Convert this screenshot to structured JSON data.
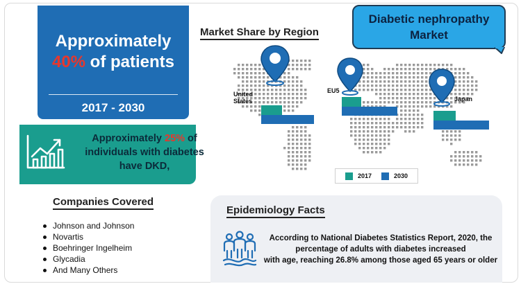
{
  "stat_card": {
    "line1": "Approximately",
    "percent": "40%",
    "line2_rest": " of patients",
    "years": "2017 - 2030"
  },
  "dkd_card": {
    "prefix": "Approximately ",
    "percent": "25%",
    "suffix": " of individuals with diabetes have DKD,",
    "icon": "growth-chart-icon"
  },
  "companies": {
    "title": "Companies Covered",
    "items": [
      "Johnson and Johnson",
      "Novartis",
      "Boehringer Ingelheim",
      "Glycadia",
      "And Many Others"
    ]
  },
  "market_share": {
    "title": "Market Share by Region",
    "regions": [
      {
        "name": "United States",
        "label_line1": "United",
        "label_line2": "States"
      },
      {
        "name": "EU5",
        "label_line1": "EU5",
        "label_line2": ""
      },
      {
        "name": "Japan",
        "label_line1": "Japan",
        "label_line2": ""
      }
    ],
    "legend": [
      {
        "label": "2017",
        "color": "#1a9d8e"
      },
      {
        "label": "2030",
        "color": "#1f6db4"
      }
    ]
  },
  "bubble": {
    "line1": "Diabetic nephropathy",
    "line2": "Market"
  },
  "epidemiology": {
    "title": "Epidemiology Facts",
    "line1": "According to National Diabetes Statistics Report, 2020, the",
    "line2": "percentage of adults with diabetes increased",
    "line3": "with age, reaching 26.8% among those aged 65 years or older",
    "icon": "population-icon"
  },
  "colors": {
    "blue": "#1f6db4",
    "teal": "#1a9d8e",
    "red": "#e8372c",
    "bubble": "#2aa6e6"
  }
}
